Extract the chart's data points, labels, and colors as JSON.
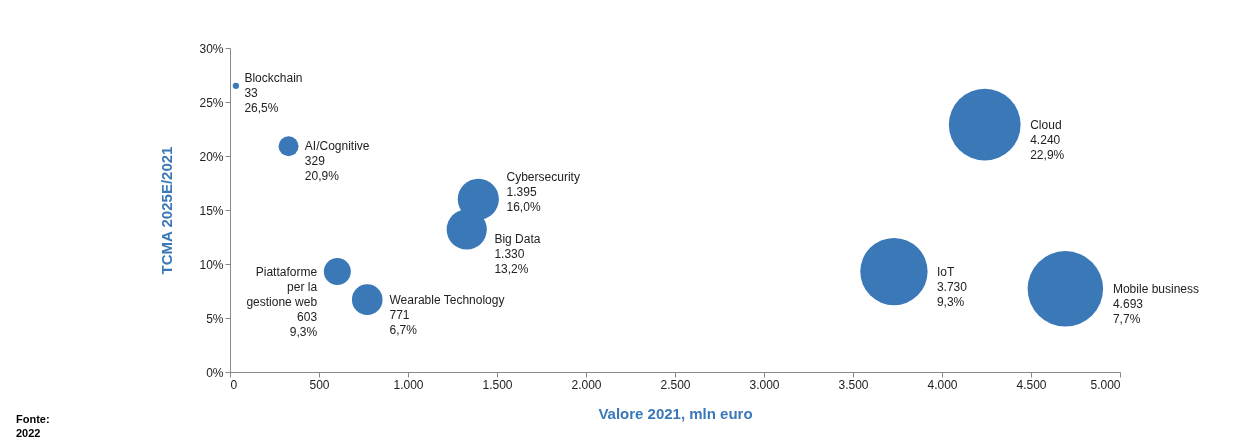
{
  "chart_data": {
    "type": "bubble",
    "xlabel": "Valore 2021, mln euro",
    "ylabel": "TCMA 2025E/2021",
    "x": [
      33,
      329,
      1395,
      1330,
      603,
      771,
      3730,
      4693,
      4240
    ],
    "series": [
      {
        "color": "#3a78b8",
        "values": [
          26.5,
          20.9,
          16.0,
          13.2,
          9.3,
          6.7,
          9.3,
          7.7,
          22.9
        ],
        "sizes": [
          0.007,
          0.07,
          0.297,
          0.283,
          0.128,
          0.164,
          0.795,
          1,
          0.903
        ]
      }
    ],
    "xlim": [
      0,
      5000
    ],
    "xticks": [
      0,
      500,
      {
        "value": 1000,
        "label": "1.000"
      },
      {
        "value": 1500,
        "label": "1.500"
      },
      {
        "value": 2000,
        "label": "2.000"
      },
      {
        "value": 2500,
        "label": "2.500"
      },
      {
        "value": 3000,
        "label": "3.000"
      },
      {
        "value": 3500,
        "label": "3.500"
      },
      {
        "value": 4000,
        "label": "4.000"
      },
      {
        "value": 4500,
        "label": "4.500"
      },
      {
        "value": 5000,
        "label": "5.000"
      }
    ],
    "ylim": [
      0,
      30
    ],
    "yticks": [
      {
        "value": 0,
        "label": "0%"
      },
      {
        "value": 5,
        "label": "5%"
      },
      {
        "value": 10,
        "label": "10%"
      },
      {
        "value": 15,
        "label": "15%"
      },
      {
        "value": 20,
        "label": "20%"
      },
      {
        "value": 25,
        "label": "25%"
      },
      {
        "value": 30,
        "label": "30%"
      }
    ],
    "grid": false,
    "annotations": [
      "Blockchain\n33\n26,5%",
      "AI/Cognitive\n329\n20,9%",
      "Cybersecurity\n1.395\n16,0%",
      "Big Data\n1.330\n13,2%",
      "Piattaforme\nper la\ngestione web\n603\n9,3%",
      "Wearable Technology\n771\n6,7%",
      "IoT\n3.730\n9,3%",
      "Mobile business\n4.693\n7,7%",
      "Cloud\n4.240\n22,9%",
      "Fonte:\n2022"
    ]
  }
}
